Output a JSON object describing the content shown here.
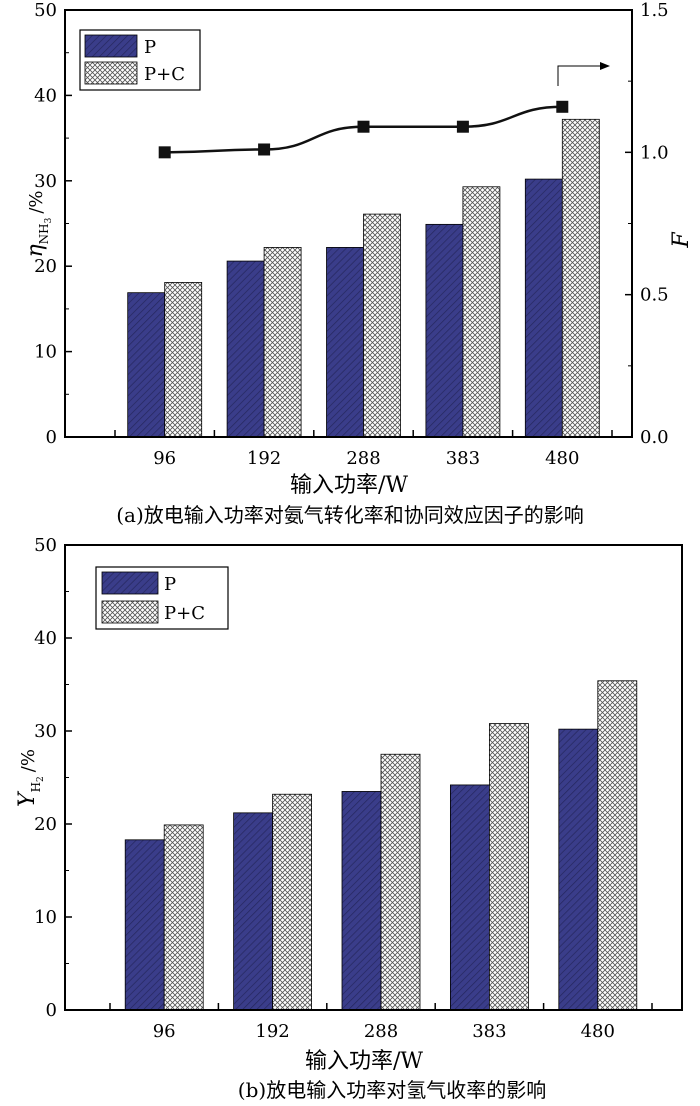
{
  "chart_data": [
    {
      "type": "bar",
      "categories": [
        "96",
        "192",
        "288",
        "383",
        "480"
      ],
      "series": [
        {
          "name": "P",
          "values": [
            16.9,
            20.6,
            22.2,
            24.9,
            30.2
          ]
        },
        {
          "name": "P+C",
          "values": [
            18.1,
            22.2,
            26.1,
            29.3,
            37.2
          ]
        }
      ],
      "line_series": {
        "axis": "right",
        "values": [
          1.0,
          1.01,
          1.09,
          1.09,
          1.16
        ]
      },
      "xlabel": "输入功率/W",
      "ylabel": "η_NH3 /%",
      "ylabel_main": "η",
      "ylabel_sub": "NH",
      "ylabel_subsub": "3",
      "ylabel_unit": "/%",
      "y2label": "F",
      "ylim": [
        0,
        50
      ],
      "yticks": [
        "0",
        "10",
        "20",
        "30",
        "40",
        "50"
      ],
      "y2lim": [
        0,
        1.5
      ],
      "y2ticks": [
        "0.0",
        "0.5",
        "1.0",
        "1.5"
      ],
      "legend_position": "top-left",
      "caption": "(a)放电输入功率对氨气转化率和协同效应因子的影响"
    },
    {
      "type": "bar",
      "categories": [
        "96",
        "192",
        "288",
        "383",
        "480"
      ],
      "series": [
        {
          "name": "P",
          "values": [
            18.3,
            21.2,
            23.5,
            24.2,
            30.2
          ]
        },
        {
          "name": "P+C",
          "values": [
            19.9,
            23.2,
            27.5,
            30.8,
            35.4
          ]
        }
      ],
      "xlabel": "输入功率/W",
      "ylabel": "Y_H2 /%",
      "ylabel_main": "Y",
      "ylabel_sub": "H",
      "ylabel_subsub": "2",
      "ylabel_unit": "/%",
      "ylim": [
        0,
        50
      ],
      "yticks": [
        "0",
        "10",
        "20",
        "30",
        "40",
        "50"
      ],
      "legend_position": "top-left",
      "caption": "(b)放电输入功率对氢气收率的影响"
    }
  ],
  "colors": {
    "series_p": "#3a3d8a",
    "series_pc_bg": "#ffffff",
    "hatch": "#555555",
    "line": "#111111"
  }
}
